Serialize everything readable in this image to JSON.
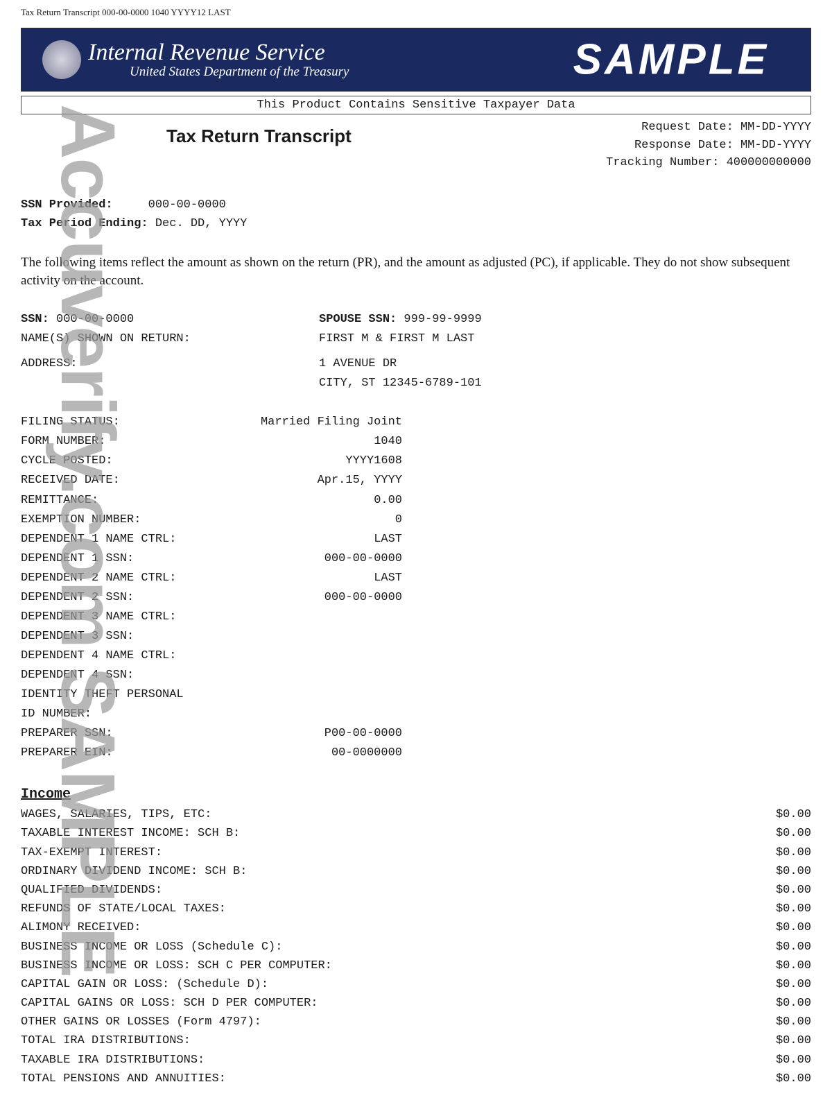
{
  "top_line": "Tax Return Transcript  000-00-0000  1040  YYYY12  LAST",
  "banner": {
    "line1": "Internal Revenue Service",
    "line2": "United States Department of the Treasury",
    "sample": "SAMPLE"
  },
  "warning": "This Product Contains Sensitive Taxpayer Data",
  "doc_title": "Tax Return Transcript",
  "meta": {
    "request": "Request Date: MM-DD-YYYY",
    "response": "Response Date: MM-DD-YYYY",
    "tracking": "Tracking Number: 400000000000"
  },
  "ssn_block": {
    "ssn_label": "SSN Provided:",
    "ssn_value": "000-00-0000",
    "period_label": "Tax Period Ending:",
    "period_value": "Dec. DD, YYYY"
  },
  "explain": "The following items reflect the amount as shown on the return (PR), and the amount as adjusted (PC), if applicable. They do not show subsequent activity on the account.",
  "ident": {
    "ssn_l": "SSN:",
    "ssn_v": "000-00-0000",
    "spouse_l": "SPOUSE SSN:",
    "spouse_v": "999-99-9999",
    "names_l": "NAME(S) SHOWN ON RETURN:",
    "names_v": "FIRST M & FIRST M LAST",
    "addr_l": "ADDRESS:",
    "addr_v1": "1 AVENUE DR",
    "addr_v2": "CITY, ST 12345-6789-101"
  },
  "details": [
    {
      "label": "FILING STATUS:",
      "value": "Married Filing Joint"
    },
    {
      "label": "FORM NUMBER:",
      "value": "1040"
    },
    {
      "label": "CYCLE POSTED:",
      "value": "YYYY1608"
    },
    {
      "label": "RECEIVED DATE:",
      "value": "Apr.15, YYYY"
    },
    {
      "label": "REMITTANCE:",
      "value": "0.00"
    },
    {
      "label": "EXEMPTION NUMBER:",
      "value": "0"
    },
    {
      "label": "DEPENDENT 1 NAME CTRL:",
      "value": "LAST"
    },
    {
      "label": "DEPENDENT 1 SSN:",
      "value": "000-00-0000"
    },
    {
      "label": "DEPENDENT 2 NAME CTRL:",
      "value": "LAST"
    },
    {
      "label": "DEPENDENT 2 SSN:",
      "value": "000-00-0000"
    },
    {
      "label": "DEPENDENT 3 NAME CTRL:",
      "value": ""
    },
    {
      "label": "DEPENDENT 3 SSN:",
      "value": ""
    },
    {
      "label": "DEPENDENT 4 NAME CTRL:",
      "value": ""
    },
    {
      "label": "DEPENDENT 4 SSN:",
      "value": ""
    },
    {
      "label": "IDENTITY THEFT PERSONAL ID NUMBER:",
      "value": ""
    },
    {
      "label": "PREPARER SSN:",
      "value": "P00-00-0000"
    },
    {
      "label": "PREPARER EIN:",
      "value": "00-0000000"
    }
  ],
  "income_heading": "Income",
  "income": [
    {
      "label": "WAGES, SALARIES, TIPS, ETC:",
      "value": "$0.00"
    },
    {
      "label": "TAXABLE INTEREST INCOME: SCH B:",
      "value": "$0.00"
    },
    {
      "label": "TAX-EXEMPT INTEREST:",
      "value": "$0.00"
    },
    {
      "label": "ORDINARY DIVIDEND INCOME: SCH B:",
      "value": "$0.00"
    },
    {
      "label": "QUALIFIED DIVIDENDS:",
      "value": "$0.00"
    },
    {
      "label": "REFUNDS OF STATE/LOCAL TAXES:",
      "value": "$0.00"
    },
    {
      "label": "ALIMONY RECEIVED:",
      "value": "$0.00"
    },
    {
      "label": "BUSINESS INCOME OR LOSS (Schedule C):",
      "value": "$0.00"
    },
    {
      "label": "BUSINESS INCOME OR LOSS: SCH C PER COMPUTER:",
      "value": "$0.00"
    },
    {
      "label": "CAPITAL GAIN OR LOSS: (Schedule D):",
      "value": "$0.00"
    },
    {
      "label": "CAPITAL GAINS OR LOSS: SCH D PER COMPUTER:",
      "value": "$0.00"
    },
    {
      "label": "OTHER GAINS OR LOSSES (Form 4797):",
      "value": "$0.00"
    },
    {
      "label": "TOTAL IRA DISTRIBUTIONS:",
      "value": "$0.00"
    },
    {
      "label": "TAXABLE IRA DISTRIBUTIONS:",
      "value": "$0.00"
    },
    {
      "label": "TOTAL PENSIONS AND ANNUITIES:",
      "value": "$0.00"
    }
  ],
  "watermark": "Accuverify.com SAMPLE",
  "colors": {
    "banner_bg": "#1a2a60",
    "text": "#1a1a1a",
    "watermark": "#9a9a9a"
  }
}
